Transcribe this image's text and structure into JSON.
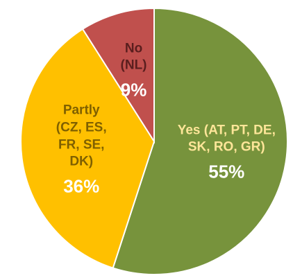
{
  "chart_data": {
    "type": "pie",
    "categories": [
      "Yes (AT, PT, DE, SK, RO, GR)",
      "Partly (CZ, ES, FR, SE, DK)",
      "No (NL)"
    ],
    "values": [
      55,
      36,
      9
    ],
    "value_labels": [
      "55%",
      "36%",
      "9%"
    ],
    "colors": [
      "#77933C",
      "#FFC000",
      "#C0504D"
    ]
  }
}
